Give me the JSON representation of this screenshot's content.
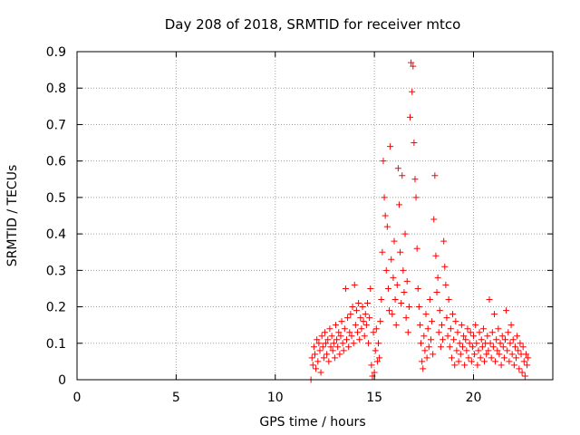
{
  "chart_data": {
    "type": "scatter",
    "title": "Day 208 of 2018, SRMTID for receiver mtco",
    "xlabel": "GPS time / hours",
    "ylabel": "SRMTID / TECUs",
    "xlim": [
      0,
      24
    ],
    "ylim": [
      0,
      0.9
    ],
    "xticks": [
      0,
      5,
      10,
      15,
      20
    ],
    "xtick_labels": [
      "0",
      "5",
      "10",
      "15",
      "20"
    ],
    "yticks": [
      0,
      0.1,
      0.2,
      0.3,
      0.4,
      0.5,
      0.6,
      0.7,
      0.8,
      0.9
    ],
    "ytick_labels": [
      "0",
      "0.1",
      "0.2",
      "0.3",
      "0.4",
      "0.5",
      "0.6",
      "0.7",
      "0.8",
      "0.9"
    ],
    "grid": true,
    "marker": "+",
    "colors": {
      "points": "#ff0000",
      "grid": "#a0a0a0",
      "axes": "#000000"
    },
    "series": [
      {
        "name": "SRMTID",
        "points": [
          [
            11.8,
            0.0
          ],
          [
            11.85,
            0.06
          ],
          [
            11.9,
            0.04
          ],
          [
            11.95,
            0.09
          ],
          [
            12.0,
            0.07
          ],
          [
            12.05,
            0.03
          ],
          [
            12.1,
            0.11
          ],
          [
            12.15,
            0.05
          ],
          [
            12.2,
            0.1
          ],
          [
            12.25,
            0.08
          ],
          [
            12.3,
            0.02
          ],
          [
            12.35,
            0.12
          ],
          [
            12.4,
            0.09
          ],
          [
            12.45,
            0.06
          ],
          [
            12.5,
            0.13
          ],
          [
            12.55,
            0.1
          ],
          [
            12.6,
            0.07
          ],
          [
            12.65,
            0.11
          ],
          [
            12.7,
            0.05
          ],
          [
            12.75,
            0.14
          ],
          [
            12.8,
            0.09
          ],
          [
            12.85,
            0.12
          ],
          [
            12.9,
            0.08
          ],
          [
            12.95,
            0.1
          ],
          [
            13.0,
            0.06
          ],
          [
            13.05,
            0.15
          ],
          [
            13.1,
            0.11
          ],
          [
            13.15,
            0.09
          ],
          [
            13.2,
            0.13
          ],
          [
            13.25,
            0.07
          ],
          [
            13.3,
            0.12
          ],
          [
            13.35,
            0.16
          ],
          [
            13.4,
            0.1
          ],
          [
            13.45,
            0.08
          ],
          [
            13.5,
            0.14
          ],
          [
            13.55,
            0.25
          ],
          [
            13.6,
            0.11
          ],
          [
            13.65,
            0.17
          ],
          [
            13.7,
            0.09
          ],
          [
            13.75,
            0.13
          ],
          [
            13.8,
            0.18
          ],
          [
            13.85,
            0.12
          ],
          [
            13.9,
            0.2
          ],
          [
            13.95,
            0.1
          ],
          [
            14.0,
            0.26
          ],
          [
            14.05,
            0.15
          ],
          [
            14.1,
            0.19
          ],
          [
            14.15,
            0.13
          ],
          [
            14.2,
            0.21
          ],
          [
            14.25,
            0.11
          ],
          [
            14.3,
            0.17
          ],
          [
            14.35,
            0.14
          ],
          [
            14.4,
            0.2
          ],
          [
            14.45,
            0.16
          ],
          [
            14.5,
            0.12
          ],
          [
            14.55,
            0.18
          ],
          [
            14.6,
            0.15
          ],
          [
            14.65,
            0.21
          ],
          [
            14.7,
            0.1
          ],
          [
            14.75,
            0.17
          ],
          [
            14.8,
            0.25
          ],
          [
            14.85,
            0.04
          ],
          [
            14.9,
            0.01
          ],
          [
            14.95,
            0.13
          ],
          [
            15.0,
            0.02
          ],
          [
            15.05,
            0.08
          ],
          [
            15.1,
            0.14
          ],
          [
            15.15,
            0.05
          ],
          [
            15.2,
            0.1
          ],
          [
            15.25,
            0.06
          ],
          [
            15.3,
            0.16
          ],
          [
            15.35,
            0.22
          ],
          [
            15.4,
            0.35
          ],
          [
            15.45,
            0.6
          ],
          [
            15.5,
            0.5
          ],
          [
            15.55,
            0.45
          ],
          [
            15.6,
            0.3
          ],
          [
            15.65,
            0.42
          ],
          [
            15.7,
            0.25
          ],
          [
            15.75,
            0.19
          ],
          [
            15.8,
            0.64
          ],
          [
            15.85,
            0.33
          ],
          [
            15.9,
            0.18
          ],
          [
            15.95,
            0.28
          ],
          [
            16.0,
            0.38
          ],
          [
            16.05,
            0.22
          ],
          [
            16.1,
            0.15
          ],
          [
            16.15,
            0.26
          ],
          [
            16.2,
            0.58
          ],
          [
            16.25,
            0.48
          ],
          [
            16.3,
            0.35
          ],
          [
            16.35,
            0.21
          ],
          [
            16.4,
            0.56
          ],
          [
            16.45,
            0.3
          ],
          [
            16.5,
            0.24
          ],
          [
            16.55,
            0.4
          ],
          [
            16.6,
            0.17
          ],
          [
            16.65,
            0.27
          ],
          [
            16.7,
            0.13
          ],
          [
            16.75,
            0.2
          ],
          [
            16.8,
            0.72
          ],
          [
            16.85,
            0.87
          ],
          [
            16.9,
            0.79
          ],
          [
            16.95,
            0.86
          ],
          [
            17.0,
            0.65
          ],
          [
            17.05,
            0.55
          ],
          [
            17.1,
            0.5
          ],
          [
            17.15,
            0.36
          ],
          [
            17.2,
            0.25
          ],
          [
            17.25,
            0.2
          ],
          [
            17.3,
            0.15
          ],
          [
            17.35,
            0.1
          ],
          [
            17.4,
            0.05
          ],
          [
            17.45,
            0.03
          ],
          [
            17.5,
            0.12
          ],
          [
            17.55,
            0.08
          ],
          [
            17.6,
            0.18
          ],
          [
            17.65,
            0.06
          ],
          [
            17.7,
            0.14
          ],
          [
            17.75,
            0.09
          ],
          [
            17.8,
            0.22
          ],
          [
            17.85,
            0.11
          ],
          [
            17.9,
            0.16
          ],
          [
            17.95,
            0.07
          ],
          [
            18.0,
            0.44
          ],
          [
            18.05,
            0.56
          ],
          [
            18.1,
            0.34
          ],
          [
            18.15,
            0.24
          ],
          [
            18.2,
            0.28
          ],
          [
            18.25,
            0.13
          ],
          [
            18.3,
            0.19
          ],
          [
            18.35,
            0.09
          ],
          [
            18.4,
            0.15
          ],
          [
            18.45,
            0.11
          ],
          [
            18.5,
            0.38
          ],
          [
            18.55,
            0.31
          ],
          [
            18.6,
            0.26
          ],
          [
            18.65,
            0.17
          ],
          [
            18.7,
            0.12
          ],
          [
            18.75,
            0.22
          ],
          [
            18.8,
            0.09
          ],
          [
            18.85,
            0.14
          ],
          [
            18.9,
            0.06
          ],
          [
            18.95,
            0.18
          ],
          [
            19.0,
            0.11
          ],
          [
            19.05,
            0.04
          ],
          [
            19.1,
            0.16
          ],
          [
            19.15,
            0.08
          ],
          [
            19.2,
            0.13
          ],
          [
            19.25,
            0.05
          ],
          [
            19.3,
            0.1
          ],
          [
            19.35,
            0.07
          ],
          [
            19.4,
            0.15
          ],
          [
            19.45,
            0.09
          ],
          [
            19.5,
            0.12
          ],
          [
            19.55,
            0.04
          ],
          [
            19.6,
            0.11
          ],
          [
            19.65,
            0.08
          ],
          [
            19.7,
            0.14
          ],
          [
            19.75,
            0.06
          ],
          [
            19.8,
            0.1
          ],
          [
            19.85,
            0.13
          ],
          [
            19.9,
            0.05
          ],
          [
            19.95,
            0.09
          ],
          [
            20.0,
            0.12
          ],
          [
            20.05,
            0.07
          ],
          [
            20.1,
            0.15
          ],
          [
            20.15,
            0.1
          ],
          [
            20.2,
            0.04
          ],
          [
            20.25,
            0.08
          ],
          [
            20.3,
            0.13
          ],
          [
            20.35,
            0.06
          ],
          [
            20.4,
            0.11
          ],
          [
            20.45,
            0.09
          ],
          [
            20.5,
            0.14
          ],
          [
            20.55,
            0.05
          ],
          [
            20.6,
            0.1
          ],
          [
            20.65,
            0.07
          ],
          [
            20.7,
            0.12
          ],
          [
            20.75,
            0.08
          ],
          [
            20.8,
            0.22
          ],
          [
            20.85,
            0.1
          ],
          [
            20.9,
            0.06
          ],
          [
            20.95,
            0.13
          ],
          [
            21.0,
            0.09
          ],
          [
            21.05,
            0.18
          ],
          [
            21.1,
            0.05
          ],
          [
            21.15,
            0.11
          ],
          [
            21.2,
            0.08
          ],
          [
            21.25,
            0.14
          ],
          [
            21.3,
            0.07
          ],
          [
            21.35,
            0.1
          ],
          [
            21.4,
            0.04
          ],
          [
            21.45,
            0.12
          ],
          [
            21.5,
            0.09
          ],
          [
            21.55,
            0.06
          ],
          [
            21.6,
            0.11
          ],
          [
            21.65,
            0.19
          ],
          [
            21.7,
            0.08
          ],
          [
            21.75,
            0.13
          ],
          [
            21.8,
            0.05
          ],
          [
            21.85,
            0.1
          ],
          [
            21.9,
            0.15
          ],
          [
            21.95,
            0.07
          ],
          [
            22.0,
            0.11
          ],
          [
            22.05,
            0.04
          ],
          [
            22.1,
            0.09
          ],
          [
            22.15,
            0.06
          ],
          [
            22.2,
            0.12
          ],
          [
            22.25,
            0.08
          ],
          [
            22.3,
            0.03
          ],
          [
            22.35,
            0.1
          ],
          [
            22.4,
            0.07
          ],
          [
            22.45,
            0.02
          ],
          [
            22.5,
            0.09
          ],
          [
            22.55,
            0.05
          ],
          [
            22.6,
            0.01
          ],
          [
            22.65,
            0.07
          ],
          [
            22.7,
            0.04
          ],
          [
            22.75,
            0.06
          ]
        ]
      }
    ]
  }
}
